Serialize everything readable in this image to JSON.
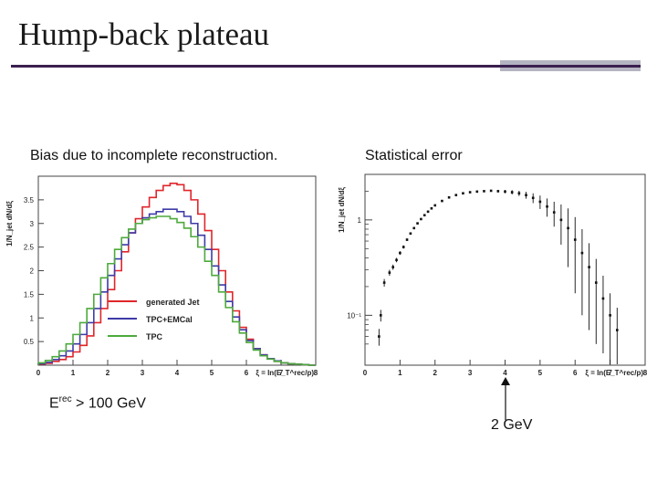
{
  "slide": {
    "title": "Hump-back plateau"
  },
  "captions": {
    "left": "Bias due to incomplete reconstruction.",
    "right": "Statistical error"
  },
  "notes": {
    "energy_prefix": "E",
    "energy_sup": "rec",
    "energy_suffix": " > 100 GeV",
    "arrow_label": "2 GeV"
  },
  "chart_data": [
    {
      "type": "line",
      "title": "",
      "xlabel": "ξ = ln(E_T^rec/p)",
      "ylabel": "1/N_jet dN/dξ",
      "xlim": [
        0,
        8
      ],
      "ylim": [
        0,
        4.0
      ],
      "x_ticks": [
        "0",
        "1",
        "2",
        "3",
        "4",
        "5",
        "6",
        "7",
        "8"
      ],
      "y_ticks": [
        "0.5",
        "1",
        "1.5",
        "2",
        "2.5",
        "3",
        "3.5"
      ],
      "legend_placement": "center",
      "colors": {
        "generated Jet": "#e0262b",
        "TPC+EMCal": "#3e3ba8",
        "TPC": "#4daa3c"
      },
      "x": [
        0.1,
        0.3,
        0.5,
        0.7,
        0.9,
        1.1,
        1.3,
        1.5,
        1.7,
        1.9,
        2.1,
        2.3,
        2.5,
        2.7,
        2.9,
        3.1,
        3.3,
        3.5,
        3.7,
        3.9,
        4.1,
        4.3,
        4.5,
        4.7,
        4.9,
        5.1,
        5.3,
        5.5,
        5.7,
        5.9,
        6.1,
        6.3,
        6.5,
        6.7,
        6.9,
        7.1,
        7.3,
        7.5,
        7.7,
        7.9
      ],
      "series": [
        {
          "name": "generated Jet",
          "values": [
            0.02,
            0.04,
            0.08,
            0.12,
            0.18,
            0.28,
            0.42,
            0.62,
            0.9,
            1.2,
            1.6,
            2.0,
            2.4,
            2.8,
            3.1,
            3.35,
            3.55,
            3.7,
            3.8,
            3.85,
            3.82,
            3.7,
            3.5,
            3.2,
            2.85,
            2.45,
            2.0,
            1.55,
            1.15,
            0.8,
            0.55,
            0.35,
            0.22,
            0.14,
            0.08,
            0.05,
            0.03,
            0.02,
            0.01,
            0.0
          ]
        },
        {
          "name": "TPC+EMCal",
          "values": [
            0.03,
            0.06,
            0.12,
            0.2,
            0.3,
            0.45,
            0.65,
            0.9,
            1.2,
            1.55,
            1.9,
            2.25,
            2.55,
            2.8,
            3.0,
            3.12,
            3.2,
            3.25,
            3.3,
            3.3,
            3.25,
            3.15,
            3.0,
            2.75,
            2.45,
            2.1,
            1.7,
            1.35,
            1.02,
            0.75,
            0.52,
            0.35,
            0.22,
            0.14,
            0.09,
            0.05,
            0.03,
            0.02,
            0.01,
            0.0
          ]
        },
        {
          "name": "TPC",
          "values": [
            0.05,
            0.1,
            0.18,
            0.3,
            0.45,
            0.65,
            0.9,
            1.2,
            1.5,
            1.85,
            2.15,
            2.45,
            2.7,
            2.88,
            3.0,
            3.08,
            3.12,
            3.15,
            3.15,
            3.1,
            3.02,
            2.9,
            2.72,
            2.5,
            2.2,
            1.9,
            1.55,
            1.22,
            0.92,
            0.68,
            0.48,
            0.32,
            0.2,
            0.13,
            0.08,
            0.05,
            0.03,
            0.02,
            0.01,
            0.0
          ]
        }
      ]
    },
    {
      "type": "scatter",
      "title": "",
      "xlabel": "ξ = ln(E_T^rec/p)",
      "ylabel": "1/N_jet dN/dξ",
      "y_scale": "log",
      "xlim": [
        0,
        8
      ],
      "ylim": [
        0.03,
        3
      ],
      "x_ticks": [
        "0",
        "1",
        "2",
        "3",
        "4",
        "5",
        "6",
        "7",
        "8"
      ],
      "y_ticks": [
        "10⁻¹",
        "1"
      ],
      "points": [
        {
          "x": 0.4,
          "y": 0.06,
          "err": 0.012
        },
        {
          "x": 0.45,
          "y": 0.1,
          "err": 0.014
        },
        {
          "x": 0.55,
          "y": 0.22,
          "err": 0.02
        },
        {
          "x": 0.7,
          "y": 0.28,
          "err": 0.02
        },
        {
          "x": 0.8,
          "y": 0.32,
          "err": 0.02
        },
        {
          "x": 0.9,
          "y": 0.38,
          "err": 0.02
        },
        {
          "x": 1.0,
          "y": 0.45,
          "err": 0.02
        },
        {
          "x": 1.1,
          "y": 0.52,
          "err": 0.02
        },
        {
          "x": 1.2,
          "y": 0.62,
          "err": 0.02
        },
        {
          "x": 1.3,
          "y": 0.72,
          "err": 0.02
        },
        {
          "x": 1.4,
          "y": 0.82,
          "err": 0.02
        },
        {
          "x": 1.5,
          "y": 0.92,
          "err": 0.02
        },
        {
          "x": 1.6,
          "y": 1.02,
          "err": 0.02
        },
        {
          "x": 1.7,
          "y": 1.12,
          "err": 0.02
        },
        {
          "x": 1.8,
          "y": 1.22,
          "err": 0.02
        },
        {
          "x": 1.9,
          "y": 1.32,
          "err": 0.02
        },
        {
          "x": 2.0,
          "y": 1.42,
          "err": 0.02
        },
        {
          "x": 2.2,
          "y": 1.58,
          "err": 0.02
        },
        {
          "x": 2.4,
          "y": 1.72,
          "err": 0.02
        },
        {
          "x": 2.6,
          "y": 1.82,
          "err": 0.02
        },
        {
          "x": 2.8,
          "y": 1.9,
          "err": 0.02
        },
        {
          "x": 3.0,
          "y": 1.95,
          "err": 0.02
        },
        {
          "x": 3.2,
          "y": 1.98,
          "err": 0.02
        },
        {
          "x": 3.4,
          "y": 2.0,
          "err": 0.02
        },
        {
          "x": 3.6,
          "y": 2.02,
          "err": 0.04
        },
        {
          "x": 3.8,
          "y": 2.0,
          "err": 0.06
        },
        {
          "x": 4.0,
          "y": 1.98,
          "err": 0.08
        },
        {
          "x": 4.2,
          "y": 1.95,
          "err": 0.1
        },
        {
          "x": 4.4,
          "y": 1.9,
          "err": 0.12
        },
        {
          "x": 4.6,
          "y": 1.82,
          "err": 0.15
        },
        {
          "x": 4.8,
          "y": 1.7,
          "err": 0.2
        },
        {
          "x": 5.0,
          "y": 1.55,
          "err": 0.25
        },
        {
          "x": 5.2,
          "y": 1.38,
          "err": 0.3
        },
        {
          "x": 5.4,
          "y": 1.2,
          "err": 0.35
        },
        {
          "x": 5.6,
          "y": 1.0,
          "err": 0.45
        },
        {
          "x": 5.8,
          "y": 0.82,
          "err": 0.5
        },
        {
          "x": 6.0,
          "y": 0.62,
          "err": 0.45
        },
        {
          "x": 6.2,
          "y": 0.45,
          "err": 0.35
        },
        {
          "x": 6.4,
          "y": 0.32,
          "err": 0.25
        },
        {
          "x": 6.6,
          "y": 0.22,
          "err": 0.17
        },
        {
          "x": 6.8,
          "y": 0.15,
          "err": 0.11
        },
        {
          "x": 7.0,
          "y": 0.1,
          "err": 0.07
        },
        {
          "x": 7.2,
          "y": 0.07,
          "err": 0.05
        }
      ]
    }
  ]
}
